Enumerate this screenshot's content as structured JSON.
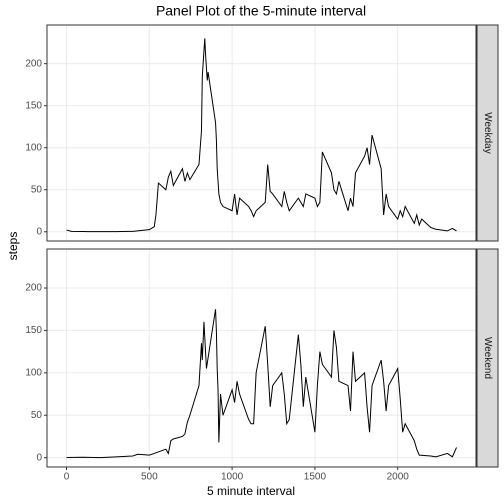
{
  "chart_data": {
    "type": "line",
    "title": "Panel Plot of the 5-minute interval",
    "xlabel": "5 minute interval",
    "ylabel": "steps",
    "color": "#000000",
    "grid": true,
    "xlim": [
      -117.75,
      2472.75
    ],
    "xticks": [
      0,
      500,
      1000,
      1500,
      2000
    ],
    "ylim": [
      -11,
      246
    ],
    "yticks": [
      0,
      50,
      100,
      150,
      200
    ],
    "panels": [
      {
        "name": "Weekday",
        "x": [
          0,
          30,
          100,
          130,
          200,
          300,
          400,
          500,
          530,
          540,
          550,
          555,
          600,
          615,
          630,
          645,
          700,
          715,
          730,
          745,
          800,
          815,
          820,
          825,
          830,
          835,
          840,
          845,
          850,
          855,
          900,
          905,
          910,
          915,
          920,
          930,
          945,
          1000,
          1015,
          1030,
          1045,
          1100,
          1115,
          1130,
          1145,
          1200,
          1215,
          1230,
          1245,
          1300,
          1315,
          1330,
          1345,
          1400,
          1415,
          1430,
          1445,
          1500,
          1515,
          1530,
          1545,
          1600,
          1615,
          1630,
          1645,
          1700,
          1715,
          1730,
          1745,
          1800,
          1815,
          1830,
          1845,
          1900,
          1915,
          1930,
          1945,
          2000,
          2015,
          2030,
          2045,
          2100,
          2115,
          2130,
          2145,
          2200,
          2230,
          2300,
          2330,
          2355
        ],
        "values": [
          2,
          0.5,
          0.3,
          0.2,
          0.1,
          0.2,
          0.5,
          2.5,
          6,
          20,
          45,
          58,
          50,
          65,
          72,
          55,
          75,
          60,
          70,
          62,
          80,
          120,
          185,
          200,
          215,
          230,
          210,
          195,
          180,
          190,
          130,
          110,
          75,
          60,
          45,
          35,
          30,
          25,
          45,
          20,
          40,
          30,
          25,
          18,
          25,
          35,
          80,
          48,
          45,
          30,
          48,
          35,
          25,
          40,
          35,
          30,
          45,
          40,
          30,
          35,
          95,
          70,
          50,
          45,
          60,
          25,
          40,
          30,
          70,
          90,
          100,
          80,
          115,
          75,
          20,
          45,
          30,
          15,
          25,
          18,
          30,
          10,
          20,
          8,
          15,
          5,
          3,
          1,
          4,
          1
        ]
      },
      {
        "name": "Weekend",
        "x": [
          0,
          100,
          200,
          300,
          400,
          430,
          500,
          530,
          600,
          615,
          630,
          645,
          700,
          715,
          730,
          745,
          800,
          815,
          820,
          830,
          845,
          900,
          905,
          910,
          915,
          920,
          930,
          945,
          1000,
          1015,
          1030,
          1045,
          1100,
          1115,
          1130,
          1145,
          1200,
          1215,
          1230,
          1245,
          1300,
          1315,
          1330,
          1345,
          1400,
          1415,
          1430,
          1445,
          1500,
          1515,
          1530,
          1545,
          1600,
          1615,
          1630,
          1645,
          1700,
          1715,
          1730,
          1745,
          1800,
          1815,
          1830,
          1845,
          1900,
          1915,
          1930,
          1945,
          2000,
          2015,
          2030,
          2045,
          2100,
          2115,
          2130,
          2200,
          2230,
          2300,
          2330,
          2355
        ],
        "values": [
          0.2,
          0.5,
          0.1,
          1,
          2,
          4,
          3,
          5,
          10,
          5,
          20,
          22,
          25,
          28,
          42,
          50,
          85,
          135,
          115,
          160,
          105,
          175,
          150,
          105,
          80,
          18,
          75,
          50,
          80,
          65,
          90,
          75,
          45,
          40,
          40,
          100,
          155,
          110,
          60,
          85,
          100,
          75,
          40,
          45,
          145,
          110,
          60,
          95,
          30,
          85,
          125,
          110,
          95,
          150,
          130,
          90,
          85,
          55,
          125,
          90,
          100,
          60,
          30,
          85,
          115,
          90,
          55,
          85,
          105,
          70,
          30,
          40,
          20,
          10,
          3,
          2,
          1,
          5,
          1,
          12
        ]
      }
    ]
  }
}
